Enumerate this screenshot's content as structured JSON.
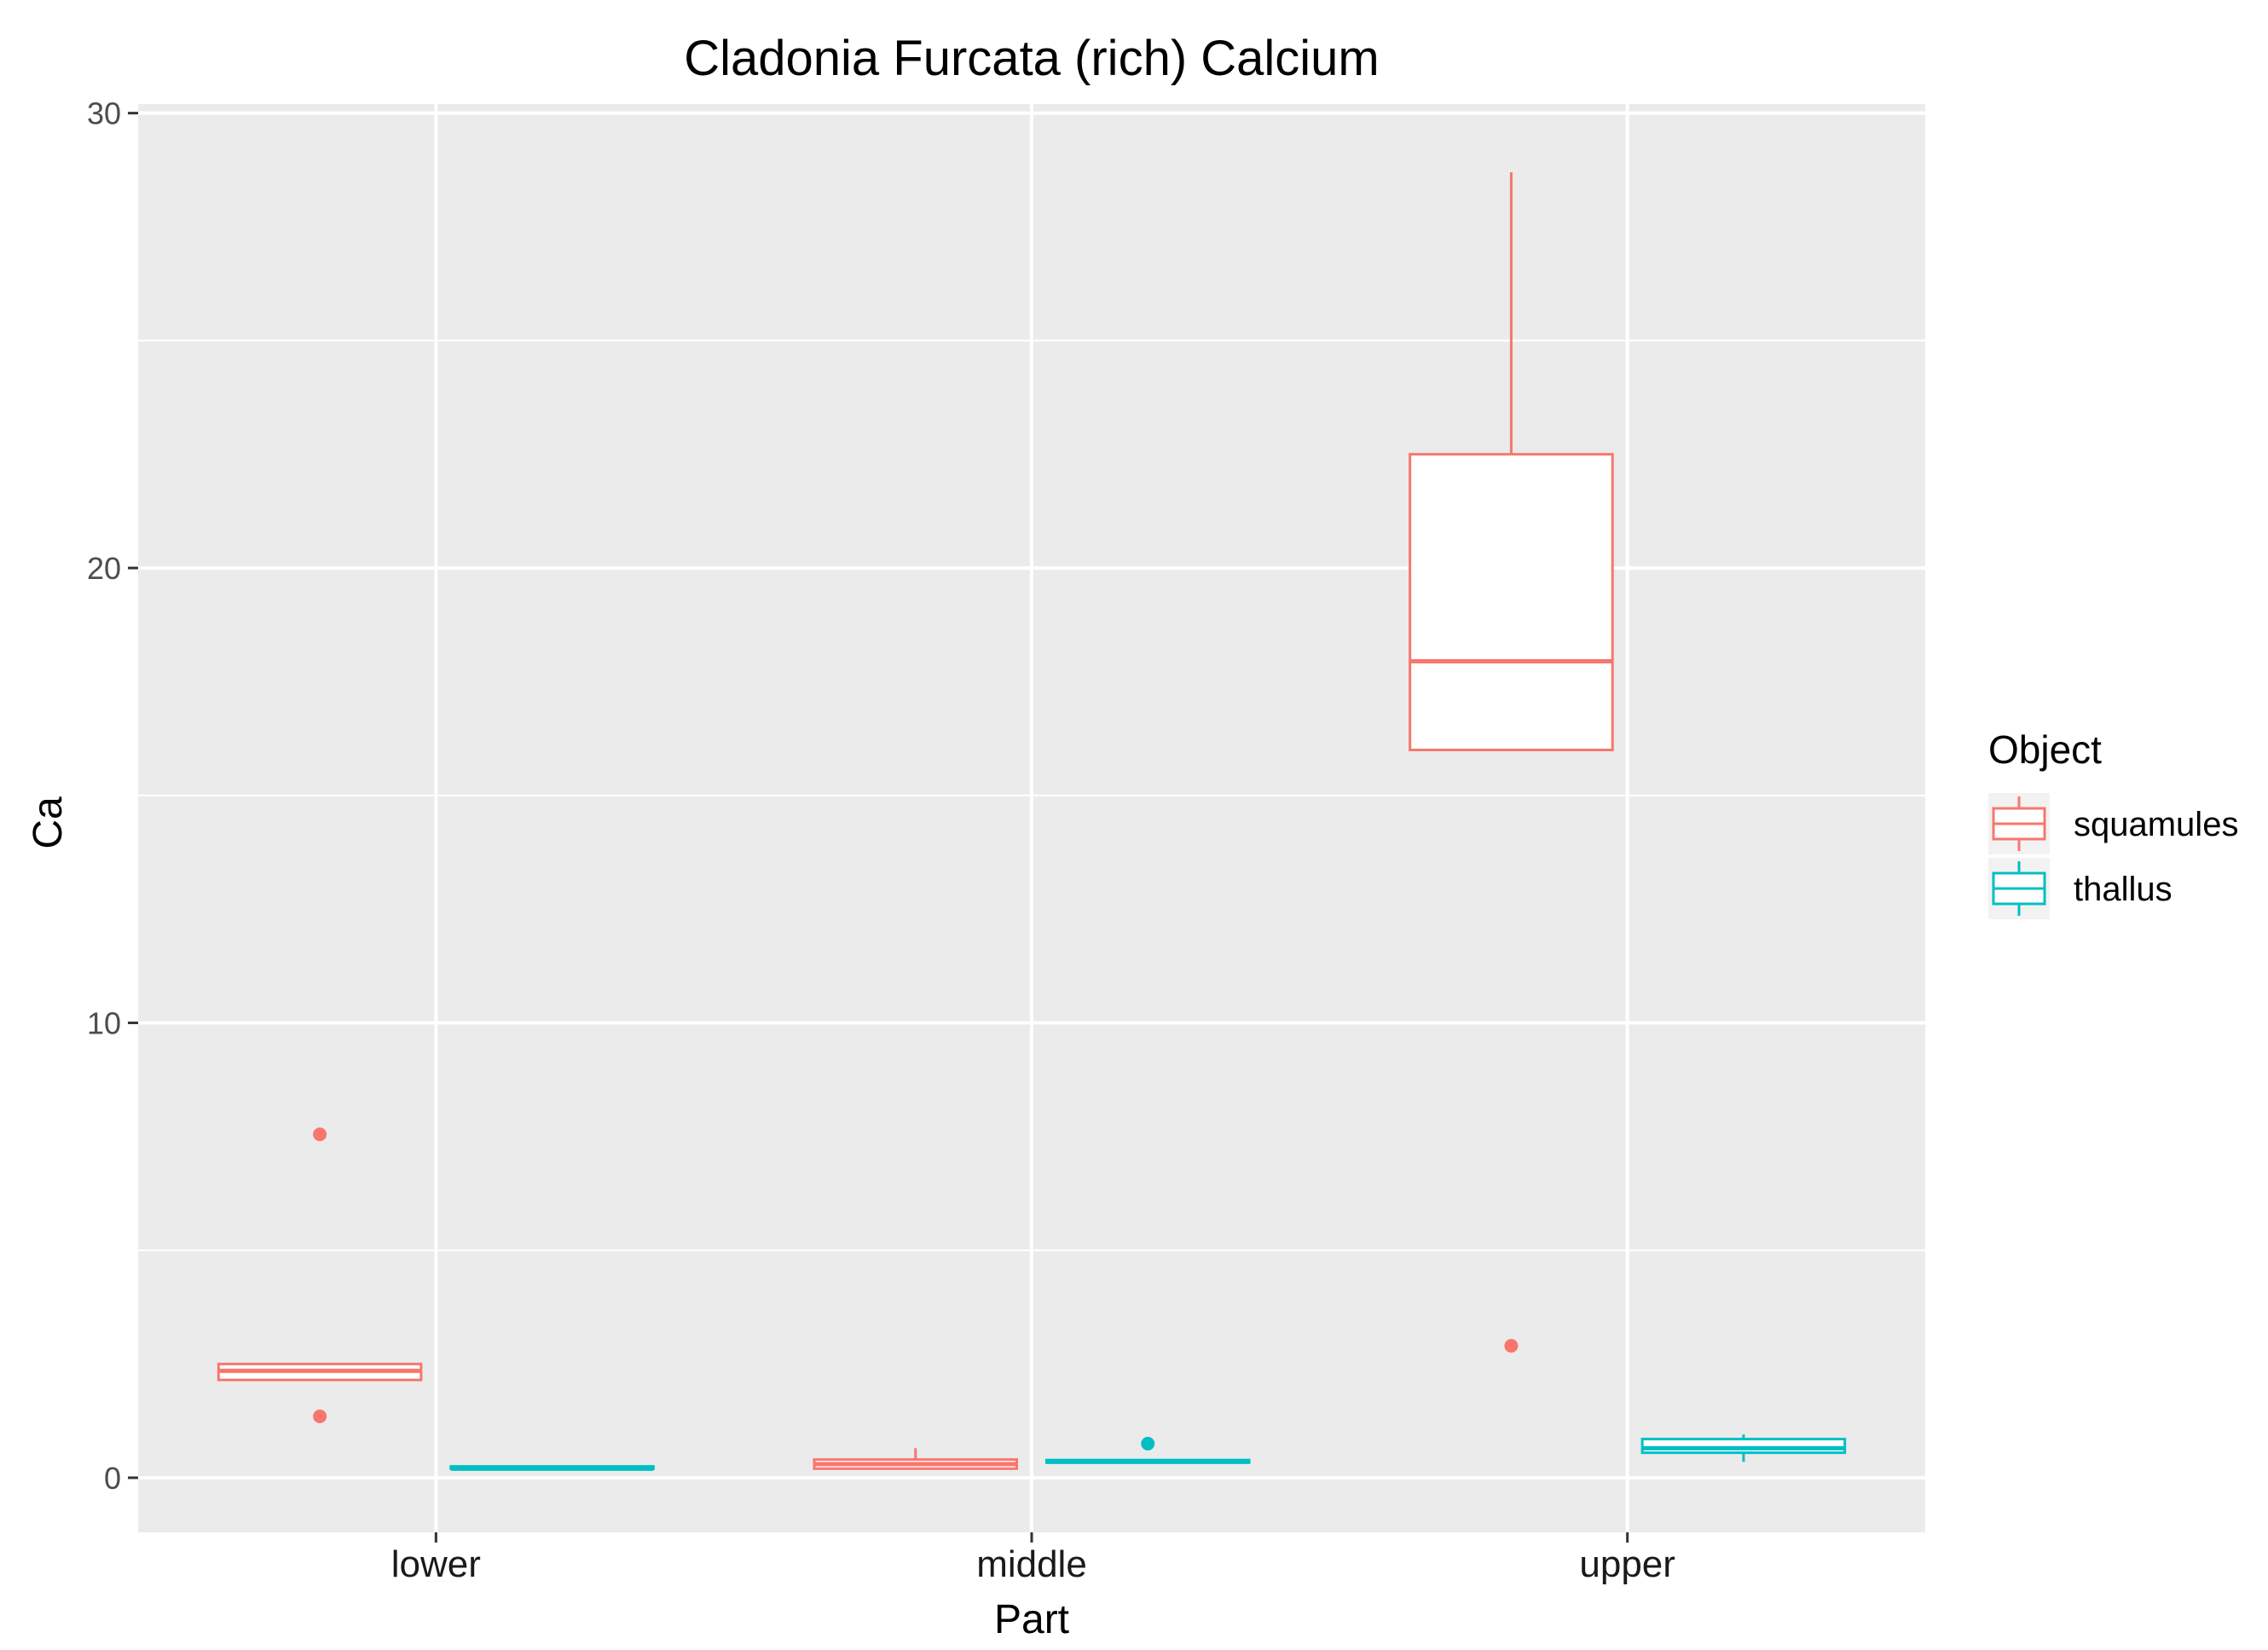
{
  "chart_data": {
    "type": "boxplot",
    "title": "Cladonia Furcata (rich) Calcium",
    "xlabel": "Part",
    "ylabel": "Ca",
    "categories": [
      "lower",
      "middle",
      "upper"
    ],
    "y_ticks": [
      0,
      10,
      20,
      30
    ],
    "ylim": [
      -1.2,
      30.2
    ],
    "grid": true,
    "legend": {
      "title": "Object",
      "placement": "right",
      "entries": [
        "squamules",
        "thallus"
      ]
    },
    "colors": {
      "panel_background": "#ebebeb",
      "grid": "#ffffff",
      "squamules": "#f8766d",
      "thallus": "#00bfc4"
    },
    "series": [
      {
        "name": "squamules",
        "boxes": [
          {
            "category": "lower",
            "whisker_low": 2.15,
            "q1": 2.15,
            "median": 2.35,
            "q3": 2.5,
            "whisker_high": 2.5,
            "outliers": [
              7.55,
              1.35
            ]
          },
          {
            "category": "middle",
            "whisker_low": 0.2,
            "q1": 0.2,
            "median": 0.3,
            "q3": 0.4,
            "whisker_high": 0.65,
            "outliers": []
          },
          {
            "category": "upper",
            "whisker_low": 16.0,
            "q1": 16.0,
            "median": 17.95,
            "q3": 22.5,
            "whisker_high": 28.7,
            "outliers": [
              2.9
            ]
          }
        ]
      },
      {
        "name": "thallus",
        "boxes": [
          {
            "category": "lower",
            "whisker_low": 0.2,
            "q1": 0.2,
            "median": 0.2,
            "q3": 0.25,
            "whisker_high": 0.25,
            "outliers": []
          },
          {
            "category": "middle",
            "whisker_low": 0.33,
            "q1": 0.33,
            "median": 0.36,
            "q3": 0.39,
            "whisker_high": 0.39,
            "outliers": [
              0.75
            ]
          },
          {
            "category": "upper",
            "whisker_low": 0.35,
            "q1": 0.55,
            "median": 0.65,
            "q3": 0.85,
            "whisker_high": 0.95,
            "outliers": []
          }
        ]
      }
    ]
  }
}
